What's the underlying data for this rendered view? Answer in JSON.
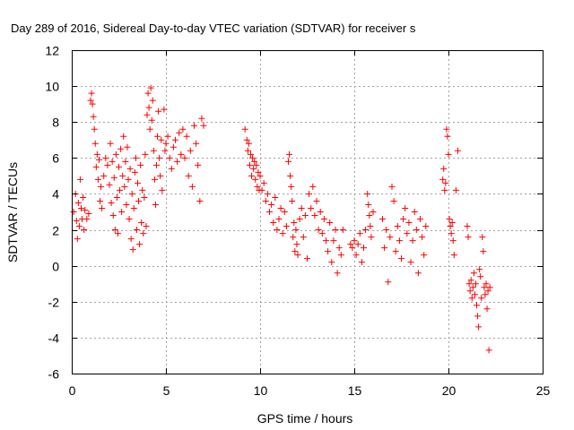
{
  "chart_data": {
    "type": "scatter",
    "title": "Day 289 of 2016, Sidereal Day-to-day VTEC variation (SDTVAR) for receiver s",
    "xlabel": "GPS time / hours",
    "ylabel": "SDTVAR / TECUs",
    "xlim": [
      0,
      25
    ],
    "ylim": [
      -6,
      12
    ],
    "xticks": [
      0,
      5,
      10,
      15,
      20,
      25
    ],
    "yticks": [
      -6,
      -4,
      -2,
      0,
      2,
      4,
      6,
      8,
      10,
      12
    ],
    "grid": true,
    "marker": "+",
    "color": "#ff0000",
    "series": [
      {
        "name": "SDTVAR",
        "points": [
          [
            0.1,
            3.0
          ],
          [
            0.2,
            4.0
          ],
          [
            0.25,
            2.5
          ],
          [
            0.3,
            1.5
          ],
          [
            0.35,
            3.5
          ],
          [
            0.4,
            2.2
          ],
          [
            0.45,
            4.8
          ],
          [
            0.5,
            3.2
          ],
          [
            0.55,
            2.6
          ],
          [
            0.6,
            3.8
          ],
          [
            0.65,
            2.0
          ],
          [
            0.7,
            3.1
          ],
          [
            0.8,
            2.6
          ],
          [
            0.9,
            2.9
          ],
          [
            1.0,
            9.2
          ],
          [
            1.05,
            9.6
          ],
          [
            1.1,
            9.0
          ],
          [
            1.15,
            8.3
          ],
          [
            1.2,
            7.6
          ],
          [
            1.25,
            6.8
          ],
          [
            1.3,
            5.5
          ],
          [
            1.35,
            6.2
          ],
          [
            1.4,
            4.8
          ],
          [
            1.45,
            5.9
          ],
          [
            1.5,
            3.6
          ],
          [
            1.55,
            4.4
          ],
          [
            1.6,
            3.2
          ],
          [
            1.7,
            5.0
          ],
          [
            1.8,
            6.0
          ],
          [
            1.9,
            5.6
          ],
          [
            2.0,
            4.5
          ],
          [
            2.05,
            6.8
          ],
          [
            2.1,
            3.5
          ],
          [
            2.15,
            5.8
          ],
          [
            2.2,
            2.8
          ],
          [
            2.25,
            4.9
          ],
          [
            2.3,
            2.0
          ],
          [
            2.35,
            6.2
          ],
          [
            2.4,
            3.8
          ],
          [
            2.45,
            1.8
          ],
          [
            2.5,
            5.5
          ],
          [
            2.55,
            4.2
          ],
          [
            2.6,
            6.5
          ],
          [
            2.65,
            3.0
          ],
          [
            2.7,
            5.0
          ],
          [
            2.75,
            7.2
          ],
          [
            2.8,
            4.4
          ],
          [
            2.85,
            5.8
          ],
          [
            2.9,
            3.4
          ],
          [
            2.95,
            6.6
          ],
          [
            3.0,
            4.8
          ],
          [
            3.05,
            2.6
          ],
          [
            3.1,
            5.4
          ],
          [
            3.15,
            1.5
          ],
          [
            3.2,
            4.0
          ],
          [
            3.25,
            0.9
          ],
          [
            3.3,
            3.2
          ],
          [
            3.35,
            5.2
          ],
          [
            3.4,
            6.0
          ],
          [
            3.45,
            2.0
          ],
          [
            3.5,
            4.6
          ],
          [
            3.55,
            3.6
          ],
          [
            3.6,
            1.2
          ],
          [
            3.65,
            5.6
          ],
          [
            3.7,
            2.4
          ],
          [
            3.75,
            4.2
          ],
          [
            3.8,
            1.8
          ],
          [
            3.85,
            3.8
          ],
          [
            3.9,
            6.2
          ],
          [
            3.95,
            2.2
          ],
          [
            4.0,
            8.4
          ],
          [
            4.05,
            9.6
          ],
          [
            4.1,
            8.8
          ],
          [
            4.15,
            7.6
          ],
          [
            4.2,
            9.9
          ],
          [
            4.25,
            8.1
          ],
          [
            4.3,
            9.2
          ],
          [
            4.35,
            6.4
          ],
          [
            4.4,
            4.8
          ],
          [
            4.45,
            3.4
          ],
          [
            4.5,
            5.6
          ],
          [
            4.55,
            7.2
          ],
          [
            4.6,
            8.6
          ],
          [
            4.65,
            6.0
          ],
          [
            4.7,
            5.0
          ],
          [
            4.75,
            7.0
          ],
          [
            4.8,
            4.2
          ],
          [
            4.9,
            8.7
          ],
          [
            4.95,
            6.4
          ],
          [
            5.0,
            6.8
          ],
          [
            5.1,
            7.2
          ],
          [
            5.2,
            6.0
          ],
          [
            5.3,
            5.4
          ],
          [
            5.4,
            6.6
          ],
          [
            5.5,
            7.0
          ],
          [
            5.6,
            5.8
          ],
          [
            5.7,
            7.4
          ],
          [
            5.8,
            6.2
          ],
          [
            5.9,
            7.6
          ],
          [
            6.0,
            6.0
          ],
          [
            6.1,
            7.2
          ],
          [
            6.2,
            5.0
          ],
          [
            6.3,
            6.4
          ],
          [
            6.4,
            4.4
          ],
          [
            6.5,
            7.8
          ],
          [
            6.6,
            6.8
          ],
          [
            6.7,
            5.6
          ],
          [
            6.8,
            3.6
          ],
          [
            6.9,
            8.2
          ],
          [
            7.0,
            7.8
          ],
          [
            9.2,
            7.6
          ],
          [
            9.3,
            7.0
          ],
          [
            9.35,
            6.4
          ],
          [
            9.4,
            6.8
          ],
          [
            9.45,
            5.6
          ],
          [
            9.5,
            6.2
          ],
          [
            9.55,
            5.0
          ],
          [
            9.6,
            6.0
          ],
          [
            9.65,
            5.4
          ],
          [
            9.7,
            5.8
          ],
          [
            9.75,
            4.8
          ],
          [
            9.8,
            5.6
          ],
          [
            9.85,
            4.4
          ],
          [
            9.9,
            5.2
          ],
          [
            9.95,
            4.2
          ],
          [
            10.0,
            5.0
          ],
          [
            10.1,
            4.2
          ],
          [
            10.2,
            4.6
          ],
          [
            10.3,
            3.6
          ],
          [
            10.4,
            4.0
          ],
          [
            10.5,
            3.0
          ],
          [
            10.6,
            3.4
          ],
          [
            10.7,
            2.4
          ],
          [
            10.8,
            3.8
          ],
          [
            10.9,
            2.0
          ],
          [
            11.0,
            2.6
          ],
          [
            11.1,
            3.2
          ],
          [
            11.2,
            1.8
          ],
          [
            11.3,
            3.0
          ],
          [
            11.4,
            2.2
          ],
          [
            11.5,
            5.8
          ],
          [
            11.55,
            6.2
          ],
          [
            11.6,
            5.0
          ],
          [
            11.65,
            4.4
          ],
          [
            11.7,
            3.6
          ],
          [
            11.75,
            1.6
          ],
          [
            11.8,
            2.4
          ],
          [
            11.85,
            0.8
          ],
          [
            11.9,
            2.0
          ],
          [
            11.95,
            1.2
          ],
          [
            12.0,
            0.6
          ],
          [
            12.1,
            2.6
          ],
          [
            12.2,
            3.2
          ],
          [
            12.3,
            1.6
          ],
          [
            12.4,
            2.8
          ],
          [
            12.5,
            0.4
          ],
          [
            12.6,
            4.0
          ],
          [
            12.7,
            3.2
          ],
          [
            12.8,
            4.4
          ],
          [
            12.9,
            2.8
          ],
          [
            13.0,
            3.6
          ],
          [
            13.1,
            2.0
          ],
          [
            13.2,
            3.0
          ],
          [
            13.3,
            1.8
          ],
          [
            13.4,
            2.6
          ],
          [
            13.5,
            1.4
          ],
          [
            13.6,
            0.8
          ],
          [
            13.7,
            2.4
          ],
          [
            13.8,
            0.2
          ],
          [
            13.9,
            1.4
          ],
          [
            14.0,
            2.0
          ],
          [
            14.1,
            -0.4
          ],
          [
            14.2,
            1.0
          ],
          [
            14.3,
            0.6
          ],
          [
            14.4,
            2.0
          ],
          [
            14.8,
            1.2
          ],
          [
            14.9,
            1.0
          ],
          [
            15.0,
            1.4
          ],
          [
            15.1,
            0.6
          ],
          [
            15.2,
            1.2
          ],
          [
            15.3,
            1.8
          ],
          [
            15.4,
            0.2
          ],
          [
            15.5,
            1.0
          ],
          [
            15.6,
            2.0
          ],
          [
            15.7,
            4.0
          ],
          [
            15.75,
            3.4
          ],
          [
            15.8,
            2.8
          ],
          [
            15.85,
            2.2
          ],
          [
            15.9,
            1.6
          ],
          [
            16.0,
            3.0
          ],
          [
            16.5,
            2.6
          ],
          [
            16.6,
            1.0
          ],
          [
            16.7,
            2.0
          ],
          [
            16.8,
            -0.9
          ],
          [
            16.9,
            1.6
          ],
          [
            17.0,
            4.4
          ],
          [
            17.1,
            3.6
          ],
          [
            17.2,
            0.8
          ],
          [
            17.3,
            2.2
          ],
          [
            17.4,
            1.4
          ],
          [
            17.5,
            0.4
          ],
          [
            17.6,
            2.6
          ],
          [
            17.7,
            3.2
          ],
          [
            17.8,
            1.8
          ],
          [
            17.9,
            2.4
          ],
          [
            18.0,
            0.2
          ],
          [
            18.1,
            1.4
          ],
          [
            18.2,
            3.0
          ],
          [
            18.3,
            2.0
          ],
          [
            18.4,
            -0.4
          ],
          [
            18.5,
            2.6
          ],
          [
            18.6,
            1.6
          ],
          [
            18.7,
            0.6
          ],
          [
            18.8,
            2.2
          ],
          [
            19.7,
            4.8
          ],
          [
            19.75,
            5.4
          ],
          [
            19.8,
            4.2
          ],
          [
            19.85,
            4.6
          ],
          [
            19.9,
            7.6
          ],
          [
            19.95,
            7.2
          ],
          [
            20.0,
            6.2
          ],
          [
            20.05,
            2.6
          ],
          [
            20.1,
            2.2
          ],
          [
            20.15,
            1.8
          ],
          [
            20.2,
            2.4
          ],
          [
            20.25,
            1.4
          ],
          [
            20.3,
            0.6
          ],
          [
            20.4,
            4.2
          ],
          [
            20.5,
            6.4
          ],
          [
            21.0,
            2.2
          ],
          [
            21.05,
            1.6
          ],
          [
            21.1,
            -1.0
          ],
          [
            21.15,
            -1.4
          ],
          [
            21.2,
            -0.8
          ],
          [
            21.25,
            -1.8
          ],
          [
            21.3,
            -1.2
          ],
          [
            21.35,
            -0.4
          ],
          [
            21.4,
            -1.6
          ],
          [
            21.45,
            -1.0
          ],
          [
            21.5,
            -2.2
          ],
          [
            21.55,
            -2.8
          ],
          [
            21.6,
            -3.4
          ],
          [
            21.65,
            -0.2
          ],
          [
            21.7,
            -0.6
          ],
          [
            21.75,
            -1.8
          ],
          [
            21.8,
            1.6
          ],
          [
            21.85,
            0.8
          ],
          [
            21.9,
            -1.2
          ],
          [
            21.95,
            -1.6
          ],
          [
            22.0,
            -1.0
          ],
          [
            22.05,
            -2.4
          ],
          [
            22.1,
            -1.4
          ],
          [
            22.15,
            -4.7
          ],
          [
            22.2,
            -1.2
          ]
        ]
      }
    ]
  }
}
